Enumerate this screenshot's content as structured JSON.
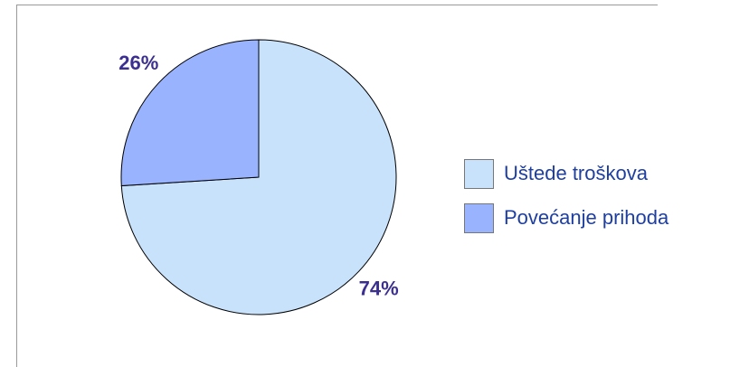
{
  "chart_data": {
    "type": "pie",
    "categories": [
      "Uštede troškova",
      "Povećanje prihoda"
    ],
    "values": [
      74,
      26
    ],
    "value_labels": [
      "74%",
      "26%"
    ],
    "colors": [
      "#c9e2fb",
      "#99b3ff"
    ],
    "legend": "right"
  }
}
